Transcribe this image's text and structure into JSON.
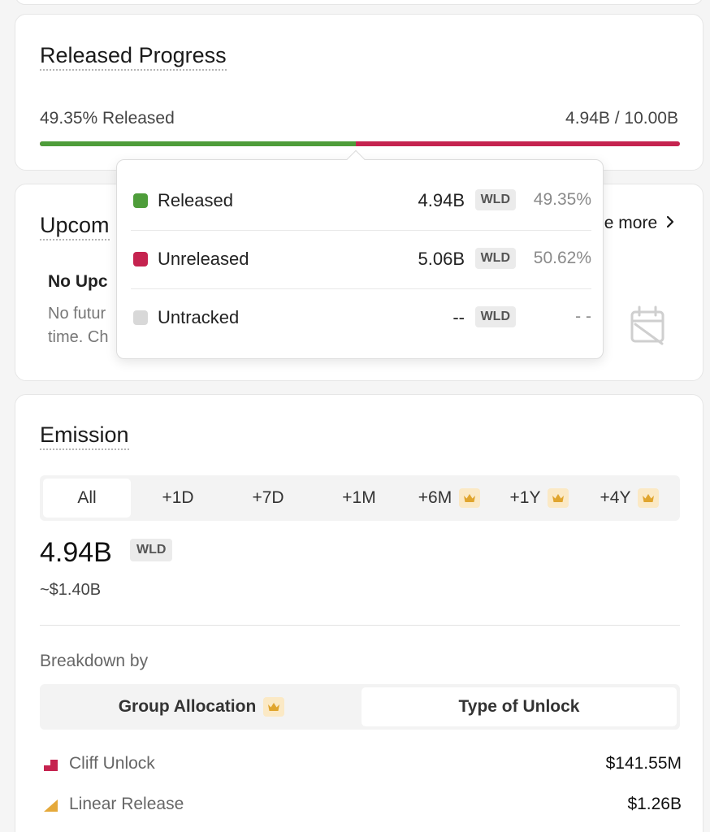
{
  "progress": {
    "title": "Released Progress",
    "released_text": "49.35% Released",
    "amount_text": "4.94B / 10.00B",
    "released_fraction": 0.4935,
    "colors": {
      "released": "#4e9d3a",
      "unreleased": "#c5234f"
    }
  },
  "tooltip": {
    "rows": [
      {
        "label": "Released",
        "amount": "4.94B",
        "unit": "WLD",
        "percent": "49.35%",
        "color": "#4e9d3a"
      },
      {
        "label": "Unreleased",
        "amount": "5.06B",
        "unit": "WLD",
        "percent": "50.62%",
        "color": "#c5234f"
      },
      {
        "label": "Untracked",
        "amount": "--",
        "unit": "WLD",
        "percent": "- -",
        "color": "#d8d8d8"
      }
    ]
  },
  "upcoming": {
    "title": "Upcom",
    "see_more": "e more",
    "empty_title": "No Upc",
    "empty_desc": "No futur time. Ch",
    "icon": "calendar-off-icon"
  },
  "emission": {
    "title": "Emission",
    "tabs": [
      {
        "label": "All",
        "premium": false,
        "active": true
      },
      {
        "label": "+1D",
        "premium": false,
        "active": false
      },
      {
        "label": "+7D",
        "premium": false,
        "active": false
      },
      {
        "label": "+1M",
        "premium": false,
        "active": false
      },
      {
        "label": "+6M",
        "premium": true,
        "active": false
      },
      {
        "label": "+1Y",
        "premium": true,
        "active": false
      },
      {
        "label": "+4Y",
        "premium": true,
        "active": false
      }
    ],
    "value": "4.94B",
    "unit": "WLD",
    "usd": "~$1.40B",
    "breakdown_label": "Breakdown by",
    "segments": {
      "group": "Group Allocation",
      "type": "Type of Unlock",
      "selected": "type"
    },
    "legend": [
      {
        "label": "Cliff Unlock",
        "value": "$141.55M",
        "color": "#c5234f",
        "icon": "cliff-icon"
      },
      {
        "label": "Linear Release",
        "value": "$1.26B",
        "color": "#e5a93a",
        "icon": "linear-icon"
      }
    ]
  }
}
